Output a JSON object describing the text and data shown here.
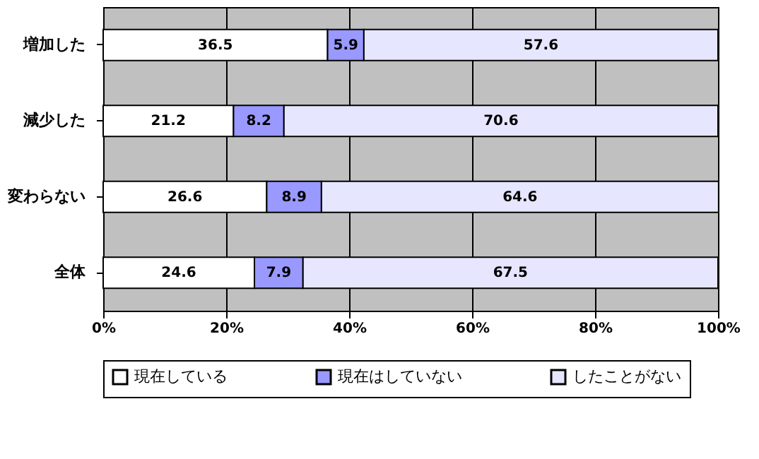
{
  "chart_data": {
    "type": "bar",
    "orientation": "horizontal",
    "stacked": true,
    "categories": [
      "増加した",
      "減少した",
      "変わらない",
      "全体"
    ],
    "series": [
      {
        "name": "現在している",
        "color": "#ffffff",
        "values": [
          36.5,
          21.2,
          26.6,
          24.6
        ]
      },
      {
        "name": "現在はしていない",
        "color": "#9999ff",
        "values": [
          5.9,
          8.2,
          8.9,
          7.9
        ]
      },
      {
        "name": "したことがない",
        "color": "#e6e6ff",
        "values": [
          57.6,
          70.6,
          64.6,
          67.5
        ]
      }
    ],
    "xlim": [
      0,
      100
    ],
    "xticks": [
      {
        "value": 0,
        "label": "0%"
      },
      {
        "value": 20,
        "label": "20%"
      },
      {
        "value": 40,
        "label": "40%"
      },
      {
        "value": 60,
        "label": "60%"
      },
      {
        "value": 80,
        "label": "80%"
      },
      {
        "value": 100,
        "label": "100%"
      }
    ],
    "grid": "x",
    "legend": "bottom",
    "data_labels": true
  }
}
